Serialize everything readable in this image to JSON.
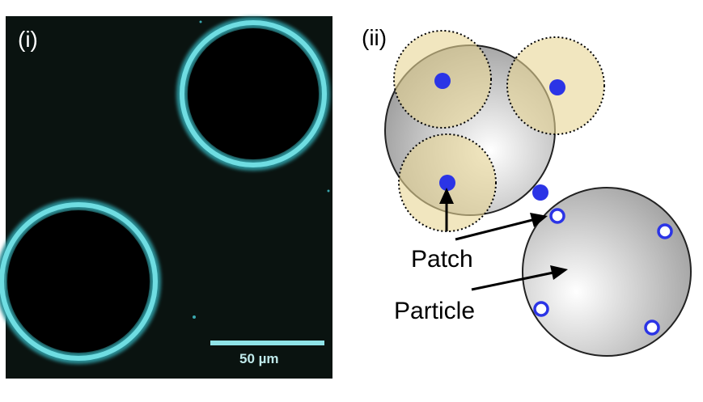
{
  "panel_i": {
    "label": "(i)",
    "scale_bar_text": "50 µm"
  },
  "panel_ii": {
    "label": "(ii)",
    "patch_label": "Patch",
    "particle_label": "Particle"
  },
  "colors": {
    "micrograph_background": "#0a1310",
    "ring": "#5ed3d8",
    "patch_fill": "#2b34e6",
    "patch_zone": "#eadba0",
    "particle": "#c8c8c8"
  }
}
